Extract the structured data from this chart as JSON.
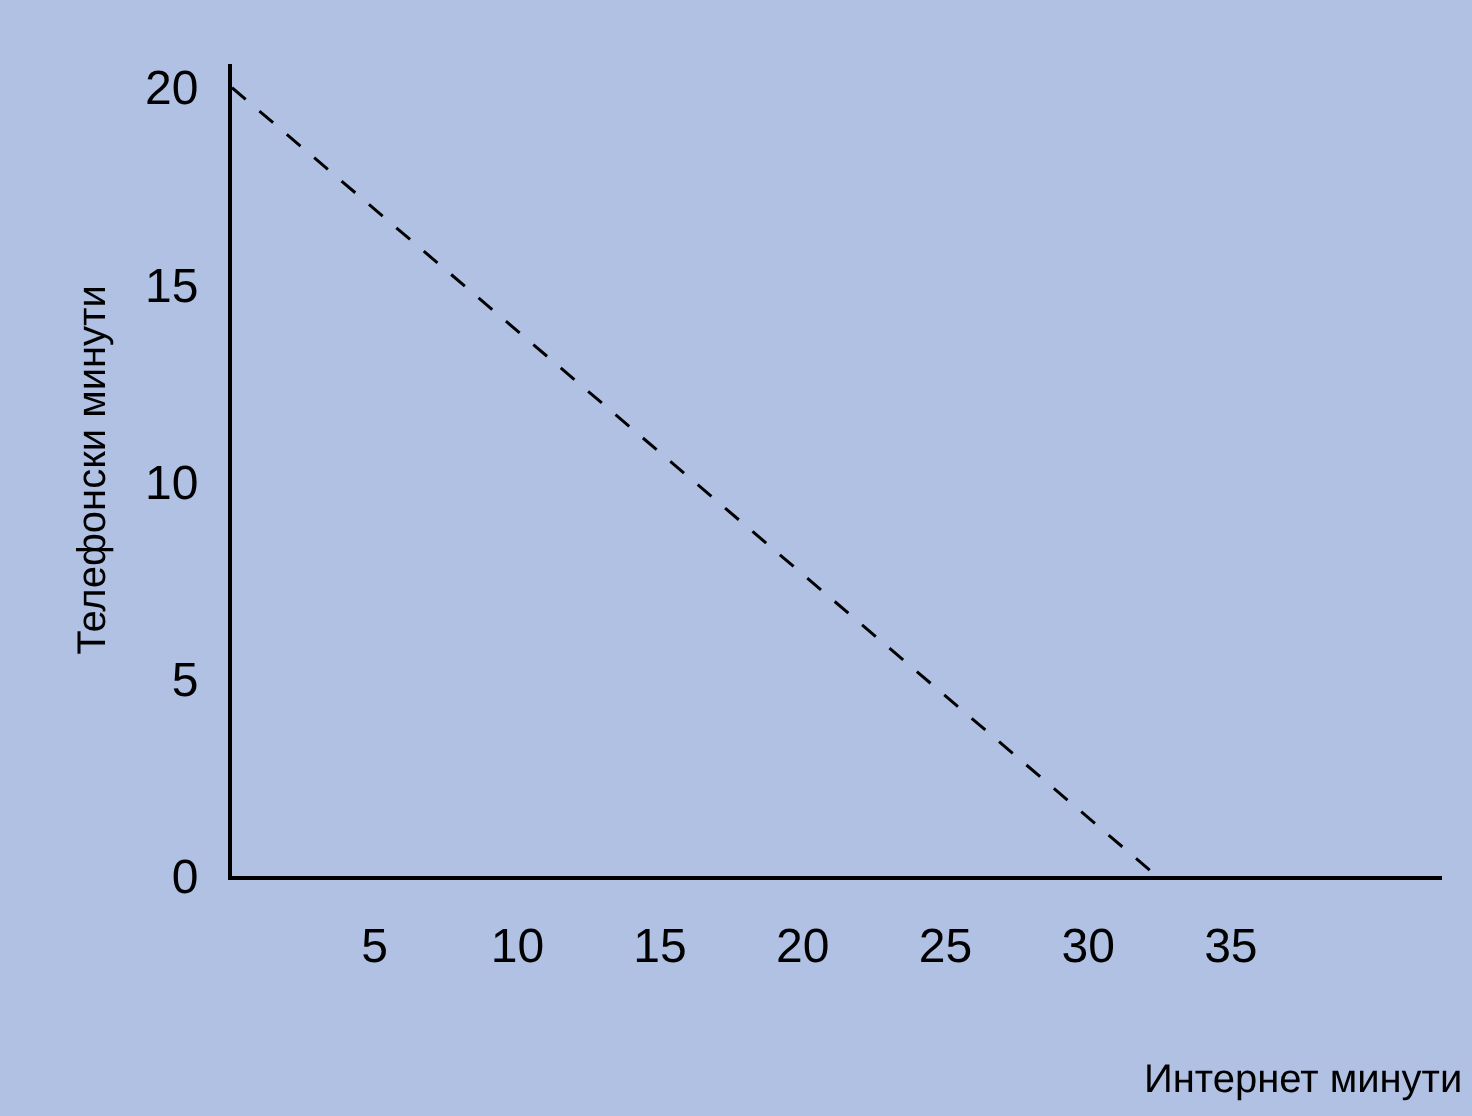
{
  "chart_data": {
    "type": "line",
    "xlabel": "Интернет минути",
    "ylabel": "Телефонски минути",
    "x": [
      0,
      32.4
    ],
    "series": [
      {
        "color": "#000000",
        "values": [
          20,
          0
        ],
        "line_style": "dashed"
      }
    ],
    "xlim": [
      0,
      42.4
    ],
    "ylim": [
      0,
      20.6
    ],
    "xticks": [
      5,
      10,
      15,
      20,
      25,
      30,
      35
    ],
    "yticks": [
      0,
      5,
      10,
      15,
      20
    ],
    "grid": false,
    "legend": false,
    "marker": "none"
  }
}
